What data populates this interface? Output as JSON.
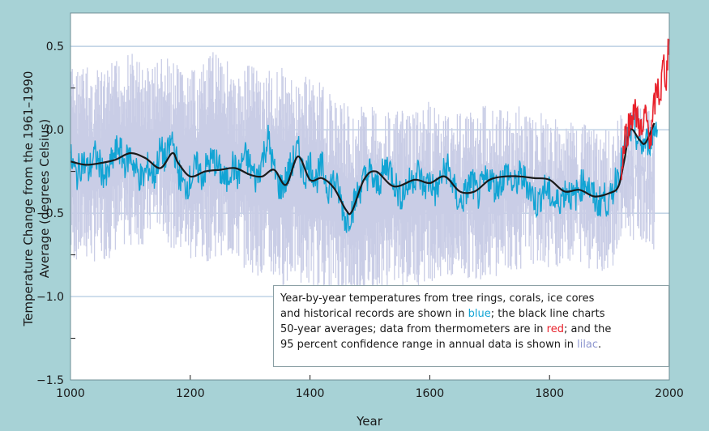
{
  "chart_data": {
    "type": "line",
    "xlabel": "Year",
    "ylabel": "Temperature Change from the 1961–1990 Average (degrees Celsius)",
    "ylabel_lines": [
      "Temperature Change from the 1961–1990",
      "Average (degrees Celsius)"
    ],
    "xlim": [
      1000,
      2000
    ],
    "ylim": [
      -1.5,
      0.7
    ],
    "x_ticks": [
      1000,
      1200,
      1400,
      1600,
      1800,
      2000
    ],
    "x_tick_labels": [
      "1000",
      "1200",
      "1400",
      "1600",
      "1800",
      "2000"
    ],
    "y_ticks": [
      -1.5,
      -1.0,
      -0.5,
      0.0,
      0.5
    ],
    "y_tick_labels": [
      "−1.5",
      "−1.0",
      "−0.5",
      "0.0",
      "0.5"
    ],
    "grid": "horizontal",
    "colors": {
      "background": "#a7d2d6",
      "plot": "#ffffff",
      "grid": "#9fbcd8",
      "confidence": "#c9cde6",
      "proxy": "#12a4d4",
      "average": "#1a1a1a",
      "thermometer": "#e8212b"
    },
    "series": [
      {
        "key": "confidence",
        "style": "band",
        "x": [
          1000,
          1025,
          1050,
          1075,
          1100,
          1125,
          1150,
          1175,
          1200,
          1225,
          1250,
          1275,
          1300,
          1325,
          1350,
          1375,
          1400,
          1425,
          1450,
          1475,
          1500,
          1525,
          1550,
          1575,
          1600,
          1625,
          1650,
          1675,
          1700,
          1725,
          1750,
          1775,
          1800,
          1825,
          1850,
          1875,
          1900,
          1925,
          1950,
          1975
        ],
        "upper": [
          0.4,
          0.4,
          0.35,
          0.42,
          0.48,
          0.4,
          0.45,
          0.4,
          0.35,
          0.4,
          0.55,
          0.3,
          0.45,
          0.35,
          0.4,
          0.28,
          0.35,
          0.25,
          0.18,
          0.12,
          0.18,
          0.12,
          0.12,
          0.1,
          0.18,
          0.12,
          0.15,
          0.12,
          0.18,
          0.12,
          0.15,
          0.1,
          0.1,
          0.05,
          0.05,
          0.0,
          0.0,
          0.15,
          0.15,
          0.1
        ],
        "lower": [
          -0.8,
          -0.8,
          -0.8,
          -0.75,
          -0.7,
          -0.7,
          -0.6,
          -0.75,
          -0.8,
          -0.8,
          -0.75,
          -0.8,
          -0.85,
          -0.9,
          -0.95,
          -0.9,
          -0.95,
          -0.95,
          -1.0,
          -1.05,
          -1.0,
          -0.95,
          -0.95,
          -0.95,
          -0.9,
          -0.95,
          -0.9,
          -0.9,
          -0.9,
          -0.85,
          -0.85,
          -0.8,
          -0.85,
          -0.8,
          -0.8,
          -0.85,
          -0.85,
          -0.7,
          -0.65,
          -0.75
        ]
      },
      {
        "key": "proxy",
        "style": "line",
        "x": [
          1000,
          1010,
          1020,
          1030,
          1040,
          1050,
          1060,
          1070,
          1080,
          1090,
          1100,
          1110,
          1120,
          1130,
          1140,
          1150,
          1160,
          1170,
          1180,
          1190,
          1200,
          1210,
          1220,
          1230,
          1240,
          1250,
          1260,
          1270,
          1280,
          1290,
          1300,
          1310,
          1320,
          1330,
          1340,
          1350,
          1360,
          1370,
          1380,
          1390,
          1400,
          1410,
          1420,
          1430,
          1440,
          1450,
          1460,
          1470,
          1480,
          1490,
          1500,
          1510,
          1520,
          1530,
          1540,
          1550,
          1560,
          1570,
          1580,
          1590,
          1600,
          1610,
          1620,
          1630,
          1640,
          1650,
          1660,
          1670,
          1680,
          1690,
          1700,
          1710,
          1720,
          1730,
          1740,
          1750,
          1760,
          1770,
          1780,
          1790,
          1800,
          1810,
          1820,
          1830,
          1840,
          1850,
          1860,
          1870,
          1880,
          1890,
          1900,
          1910,
          1920,
          1930,
          1940,
          1950,
          1960,
          1970,
          1980
        ],
        "y": [
          -0.17,
          -0.28,
          -0.18,
          -0.25,
          -0.15,
          -0.22,
          -0.3,
          -0.18,
          -0.1,
          -0.2,
          -0.15,
          -0.25,
          -0.3,
          -0.22,
          -0.28,
          -0.12,
          -0.18,
          -0.05,
          -0.25,
          -0.35,
          -0.3,
          -0.22,
          -0.28,
          -0.2,
          -0.18,
          -0.25,
          -0.32,
          -0.2,
          -0.28,
          -0.15,
          -0.22,
          -0.3,
          -0.18,
          -0.05,
          -0.25,
          -0.35,
          -0.3,
          -0.2,
          -0.12,
          -0.28,
          -0.2,
          -0.3,
          -0.22,
          -0.35,
          -0.3,
          -0.4,
          -0.55,
          -0.48,
          -0.38,
          -0.3,
          -0.25,
          -0.35,
          -0.28,
          -0.2,
          -0.3,
          -0.4,
          -0.35,
          -0.3,
          -0.25,
          -0.35,
          -0.3,
          -0.38,
          -0.28,
          -0.22,
          -0.35,
          -0.45,
          -0.38,
          -0.3,
          -0.4,
          -0.32,
          -0.28,
          -0.35,
          -0.3,
          -0.25,
          -0.35,
          -0.28,
          -0.3,
          -0.38,
          -0.45,
          -0.35,
          -0.38,
          -0.45,
          -0.4,
          -0.35,
          -0.42,
          -0.35,
          -0.3,
          -0.38,
          -0.45,
          -0.4,
          -0.45,
          -0.3,
          -0.2,
          -0.05,
          0.02,
          -0.1,
          -0.08,
          -0.05,
          0.05
        ]
      },
      {
        "key": "average",
        "style": "line",
        "x": [
          1000,
          1025,
          1050,
          1075,
          1100,
          1125,
          1150,
          1170,
          1180,
          1200,
          1225,
          1250,
          1275,
          1300,
          1320,
          1340,
          1360,
          1380,
          1400,
          1420,
          1440,
          1460,
          1470,
          1490,
          1510,
          1540,
          1575,
          1600,
          1625,
          1650,
          1675,
          1700,
          1725,
          1750,
          1775,
          1800,
          1825,
          1850,
          1875,
          1900,
          1915,
          1925,
          1935,
          1950,
          1960,
          1975
        ],
        "y": [
          -0.19,
          -0.21,
          -0.2,
          -0.18,
          -0.14,
          -0.17,
          -0.23,
          -0.14,
          -0.2,
          -0.28,
          -0.25,
          -0.24,
          -0.23,
          -0.27,
          -0.28,
          -0.24,
          -0.33,
          -0.16,
          -0.3,
          -0.29,
          -0.35,
          -0.48,
          -0.49,
          -0.3,
          -0.25,
          -0.34,
          -0.3,
          -0.32,
          -0.28,
          -0.37,
          -0.37,
          -0.3,
          -0.28,
          -0.28,
          -0.29,
          -0.3,
          -0.37,
          -0.36,
          -0.4,
          -0.38,
          -0.34,
          -0.18,
          0.0,
          -0.06,
          -0.08,
          0.04
        ]
      },
      {
        "key": "thermometer",
        "style": "line",
        "x": [
          1920,
          1925,
          1930,
          1935,
          1940,
          1945,
          1950,
          1955,
          1960,
          1965,
          1970,
          1975,
          1980,
          1985,
          1990,
          1995,
          2000
        ],
        "y": [
          -0.3,
          -0.05,
          0.0,
          0.05,
          0.12,
          0.08,
          0.05,
          -0.05,
          0.1,
          0.0,
          -0.05,
          0.15,
          0.25,
          0.2,
          0.4,
          0.3,
          0.6
        ]
      }
    ],
    "annotation": {
      "lines": [
        [
          {
            "t": "Year-by-year temperatures from tree rings, corals, ice cores"
          }
        ],
        [
          {
            "t": "and historical records are shown in "
          },
          {
            "t": "blue",
            "c": "#12a4d4"
          },
          {
            "t": "; the black line charts"
          }
        ],
        [
          {
            "t": "50-year averages; data from thermometers are in "
          },
          {
            "t": "red",
            "c": "#e8212b"
          },
          {
            "t": "; and the"
          }
        ],
        [
          {
            "t": "95 percent confidence range in annual data is shown in "
          },
          {
            "t": "lilac",
            "c": "#8e97cf"
          },
          {
            "t": "."
          }
        ]
      ]
    }
  }
}
